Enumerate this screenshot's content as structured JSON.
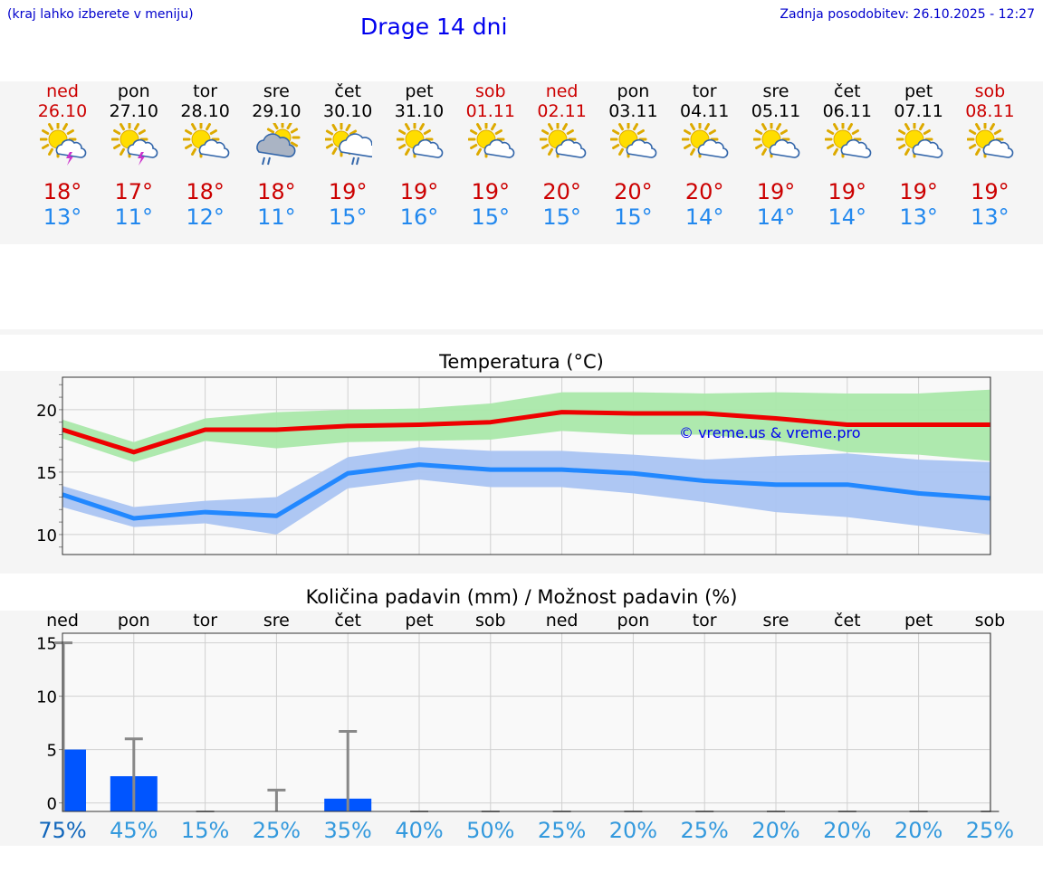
{
  "header": {
    "hint": "(kraj lahko izberete v meniju)",
    "title": "Drage 14 dni",
    "updated": "Zadnja posodobitev: 26.10.2025 - 12:27"
  },
  "days": [
    {
      "name": "ned",
      "date": "26.10",
      "weekend": true,
      "icon": "partly-cloudy-thunderstorm-icon",
      "max": "18°",
      "min": "13°"
    },
    {
      "name": "pon",
      "date": "27.10",
      "weekend": false,
      "icon": "partly-cloudy-thunderstorm-icon",
      "max": "17°",
      "min": "11°"
    },
    {
      "name": "tor",
      "date": "28.10",
      "weekend": false,
      "icon": "partly-cloudy-icon",
      "max": "18°",
      "min": "12°"
    },
    {
      "name": "sre",
      "date": "29.10",
      "weekend": false,
      "icon": "rain-showers-icon",
      "max": "18°",
      "min": "11°"
    },
    {
      "name": "čet",
      "date": "30.10",
      "weekend": false,
      "icon": "cloudy-showers-icon",
      "max": "19°",
      "min": "15°"
    },
    {
      "name": "pet",
      "date": "31.10",
      "weekend": false,
      "icon": "partly-cloudy-icon",
      "max": "19°",
      "min": "16°"
    },
    {
      "name": "sob",
      "date": "01.11",
      "weekend": true,
      "icon": "partly-cloudy-icon",
      "max": "19°",
      "min": "15°"
    },
    {
      "name": "ned",
      "date": "02.11",
      "weekend": true,
      "icon": "partly-cloudy-icon",
      "max": "20°",
      "min": "15°"
    },
    {
      "name": "pon",
      "date": "03.11",
      "weekend": false,
      "icon": "partly-cloudy-icon",
      "max": "20°",
      "min": "15°"
    },
    {
      "name": "tor",
      "date": "04.11",
      "weekend": false,
      "icon": "partly-cloudy-icon",
      "max": "20°",
      "min": "14°"
    },
    {
      "name": "sre",
      "date": "05.11",
      "weekend": false,
      "icon": "partly-cloudy-icon",
      "max": "19°",
      "min": "14°"
    },
    {
      "name": "čet",
      "date": "06.11",
      "weekend": false,
      "icon": "partly-cloudy-icon",
      "max": "19°",
      "min": "14°"
    },
    {
      "name": "pet",
      "date": "07.11",
      "weekend": false,
      "icon": "partly-cloudy-icon",
      "max": "19°",
      "min": "13°"
    },
    {
      "name": "sob",
      "date": "08.11",
      "weekend": true,
      "icon": "partly-cloudy-icon",
      "max": "19°",
      "min": "13°"
    }
  ],
  "colors": {
    "max_line": "#ee0000",
    "max_band": "#aae8aa",
    "min_line": "#2288ff",
    "min_band": "#aac4f2",
    "precip_bar": "#0055ff",
    "error_bar": "#888888",
    "sun": "#ffdd00",
    "cloud": "#ffffff",
    "cloud_stroke": "#3366aa",
    "lightning": "#cc33cc",
    "rain": "#3366aa"
  },
  "chart_data": [
    {
      "type": "line",
      "title": "Temperatura (°C)",
      "watermark": "© vreme.us & vreme.pro",
      "ylim": [
        8.4,
        22.6
      ],
      "yticks": [
        10,
        15,
        20
      ],
      "grid": true,
      "x_labels": [
        "ned",
        "pon",
        "tor",
        "sre",
        "čet",
        "pet",
        "sob",
        "ned",
        "pon",
        "tor",
        "sre",
        "čet",
        "pet",
        "sob"
      ],
      "series": [
        {
          "values": [
            18.4,
            16.6,
            18.4,
            18.4,
            18.7,
            18.8,
            19.0,
            19.8,
            19.7,
            19.7,
            19.3,
            18.8,
            18.8,
            18.8
          ],
          "band_low": [
            17.7,
            15.8,
            17.5,
            16.9,
            17.4,
            17.5,
            17.6,
            18.3,
            18.0,
            18.0,
            17.5,
            16.6,
            16.4,
            15.9
          ],
          "band_high": [
            19.2,
            17.4,
            19.3,
            19.8,
            20.0,
            20.1,
            20.5,
            21.4,
            21.4,
            21.3,
            21.4,
            21.3,
            21.3,
            21.6
          ]
        },
        {
          "values": [
            13.2,
            11.3,
            11.8,
            11.5,
            14.9,
            15.6,
            15.2,
            15.2,
            14.9,
            14.3,
            14.0,
            14.0,
            13.3,
            12.9
          ],
          "band_low": [
            12.2,
            10.6,
            10.9,
            10.0,
            13.7,
            14.4,
            13.8,
            13.8,
            13.3,
            12.6,
            11.8,
            11.4,
            10.7,
            10.0
          ],
          "band_high": [
            13.9,
            12.2,
            12.7,
            13.0,
            16.2,
            17.0,
            16.7,
            16.7,
            16.4,
            16.0,
            16.3,
            16.5,
            16.0,
            15.8
          ]
        }
      ]
    },
    {
      "type": "bar",
      "title": "Količina padavin (mm) / Možnost padavin (%)",
      "ylim": [
        -0.8,
        15.9
      ],
      "yticks": [
        0,
        5,
        10,
        15
      ],
      "grid": true,
      "categories": [
        "ned",
        "pon",
        "tor",
        "sre",
        "čet",
        "pet",
        "sob",
        "ned",
        "pon",
        "tor",
        "sre",
        "čet",
        "pet",
        "sob"
      ],
      "amount_mm": [
        5.0,
        2.5,
        0,
        0,
        0.4,
        0,
        0,
        0,
        0,
        0,
        0,
        0,
        0,
        0
      ],
      "max_mm": [
        15.0,
        6.0,
        0,
        1.2,
        6.7,
        0,
        0,
        0,
        0,
        0,
        0,
        0,
        0,
        0
      ],
      "probability": [
        "75%",
        "45%",
        "15%",
        "25%",
        "35%",
        "40%",
        "50%",
        "25%",
        "20%",
        "25%",
        "20%",
        "20%",
        "20%",
        "25%"
      ]
    }
  ]
}
